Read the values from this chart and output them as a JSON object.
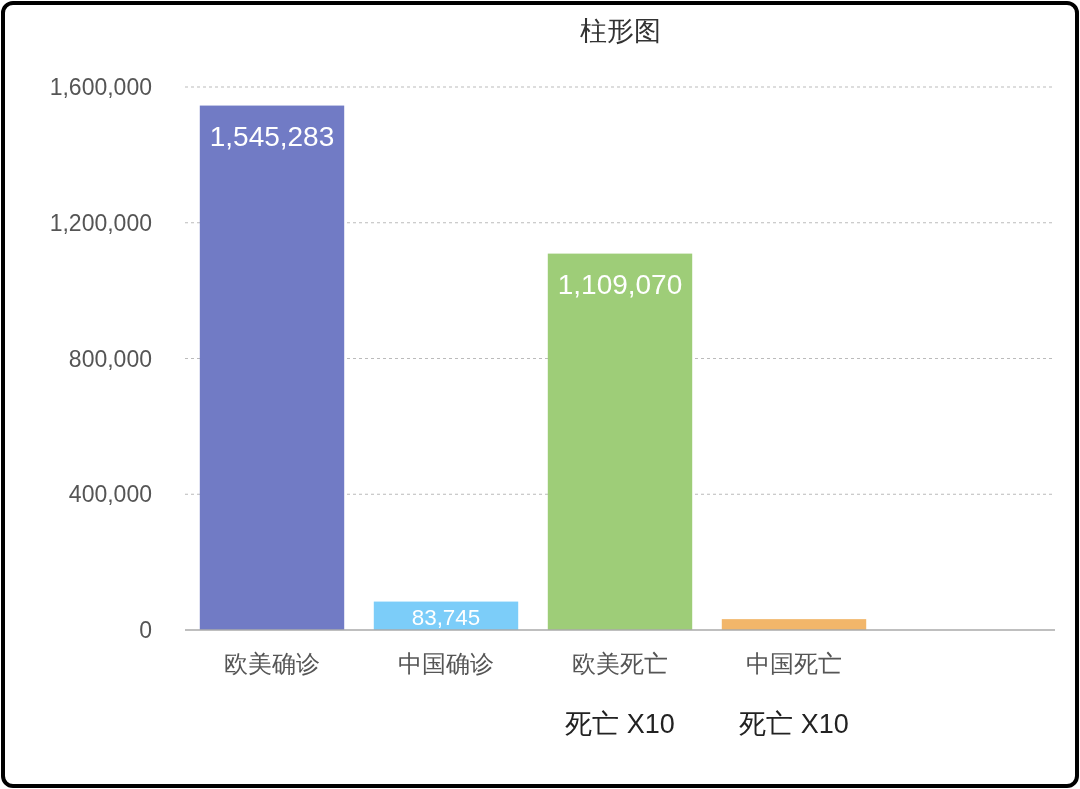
{
  "chart_data": {
    "type": "bar",
    "title": "柱形图",
    "categories": [
      "欧美确诊",
      "中国确诊",
      "欧美死亡",
      "中国死亡",
      null
    ],
    "values": [
      1545283,
      83745,
      1109070,
      32000,
      null
    ],
    "colors": [
      "#717bc5",
      "#7ccdf9",
      "#9ecd78",
      "#f2b66a",
      null
    ],
    "value_labels": [
      "1,545,283",
      "83,745",
      "1,109,070",
      null,
      null
    ],
    "ylim": [
      0,
      1600000
    ],
    "yticks": [
      {
        "value": 0,
        "label": "0"
      },
      {
        "value": 400000,
        "label": "400,000"
      },
      {
        "value": 800000,
        "label": "800,000"
      },
      {
        "value": 1200000,
        "label": "1,200,000"
      },
      {
        "value": 1600000,
        "label": "1,600,000"
      }
    ],
    "grid": "y",
    "annotations": [
      "死亡 X10",
      "死亡 X10"
    ]
  }
}
